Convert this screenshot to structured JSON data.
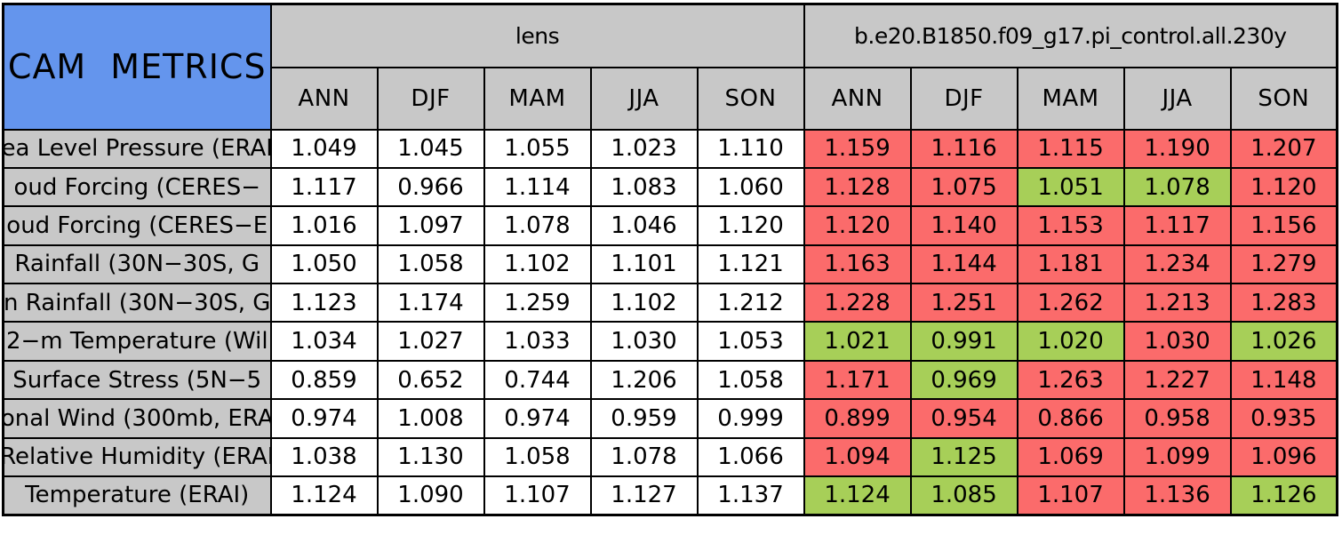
{
  "chart_data": {
    "type": "table",
    "title": "CAM METRICS",
    "corner_label": "CAM METRICS",
    "column_groups": [
      {
        "label": "lens"
      },
      {
        "label": "b.e20.B1850.f09_g17.pi_control.all.230y"
      }
    ],
    "season_columns": [
      "ANN",
      "DJF",
      "MAM",
      "JJA",
      "SON"
    ],
    "colors": {
      "corner_blue": "#6495ed",
      "header_gray": "#c8c8c8",
      "cell_red": "#fb6b6b",
      "cell_green": "#a7cf58",
      "cell_white": "#ffffff",
      "border_black": "#000000"
    },
    "rows": [
      {
        "label": "ea Level Pressure (ERAI",
        "lens_values": [
          "1.049",
          "1.045",
          "1.055",
          "1.023",
          "1.110"
        ],
        "control_values": [
          "1.159",
          "1.116",
          "1.115",
          "1.190",
          "1.207"
        ],
        "control_colors": [
          "red",
          "red",
          "red",
          "red",
          "red"
        ]
      },
      {
        "label": "oud Forcing (CERES−",
        "lens_values": [
          "1.117",
          "0.966",
          "1.114",
          "1.083",
          "1.060"
        ],
        "control_values": [
          "1.128",
          "1.075",
          "1.051",
          "1.078",
          "1.120"
        ],
        "control_colors": [
          "red",
          "red",
          "green",
          "green",
          "red"
        ]
      },
      {
        "label": "oud Forcing (CERES−E",
        "lens_values": [
          "1.016",
          "1.097",
          "1.078",
          "1.046",
          "1.120"
        ],
        "control_values": [
          "1.120",
          "1.140",
          "1.153",
          "1.117",
          "1.156"
        ],
        "control_colors": [
          "red",
          "red",
          "red",
          "red",
          "red"
        ]
      },
      {
        "label": "Rainfall (30N−30S, G",
        "lens_values": [
          "1.050",
          "1.058",
          "1.102",
          "1.101",
          "1.121"
        ],
        "control_values": [
          "1.163",
          "1.144",
          "1.181",
          "1.234",
          "1.279"
        ],
        "control_colors": [
          "red",
          "red",
          "red",
          "red",
          "red"
        ]
      },
      {
        "label": "n Rainfall (30N−30S, G",
        "lens_values": [
          "1.123",
          "1.174",
          "1.259",
          "1.102",
          "1.212"
        ],
        "control_values": [
          "1.228",
          "1.251",
          "1.262",
          "1.213",
          "1.283"
        ],
        "control_colors": [
          "red",
          "red",
          "red",
          "red",
          "red"
        ]
      },
      {
        "label": "2−m Temperature (Wil",
        "lens_values": [
          "1.034",
          "1.027",
          "1.033",
          "1.030",
          "1.053"
        ],
        "control_values": [
          "1.021",
          "0.991",
          "1.020",
          "1.030",
          "1.026"
        ],
        "control_colors": [
          "green",
          "green",
          "green",
          "red",
          "green"
        ]
      },
      {
        "label": "Surface Stress (5N−5",
        "lens_values": [
          "0.859",
          "0.652",
          "0.744",
          "1.206",
          "1.058"
        ],
        "control_values": [
          "1.171",
          "0.969",
          "1.263",
          "1.227",
          "1.148"
        ],
        "control_colors": [
          "red",
          "green",
          "red",
          "red",
          "red"
        ]
      },
      {
        "label": "onal Wind (300mb, ERA",
        "lens_values": [
          "0.974",
          "1.008",
          "0.974",
          "0.959",
          "0.999"
        ],
        "control_values": [
          "0.899",
          "0.954",
          "0.866",
          "0.958",
          "0.935"
        ],
        "control_colors": [
          "red",
          "red",
          "red",
          "red",
          "red"
        ]
      },
      {
        "label": "Relative Humidity (ERAI",
        "lens_values": [
          "1.038",
          "1.130",
          "1.058",
          "1.078",
          "1.066"
        ],
        "control_values": [
          "1.094",
          "1.125",
          "1.069",
          "1.099",
          "1.096"
        ],
        "control_colors": [
          "red",
          "green",
          "red",
          "red",
          "red"
        ]
      },
      {
        "label": "Temperature (ERAI)",
        "lens_values": [
          "1.124",
          "1.090",
          "1.107",
          "1.127",
          "1.137"
        ],
        "control_values": [
          "1.124",
          "1.085",
          "1.107",
          "1.136",
          "1.126"
        ],
        "control_colors": [
          "green",
          "green",
          "red",
          "red",
          "green"
        ]
      }
    ]
  }
}
